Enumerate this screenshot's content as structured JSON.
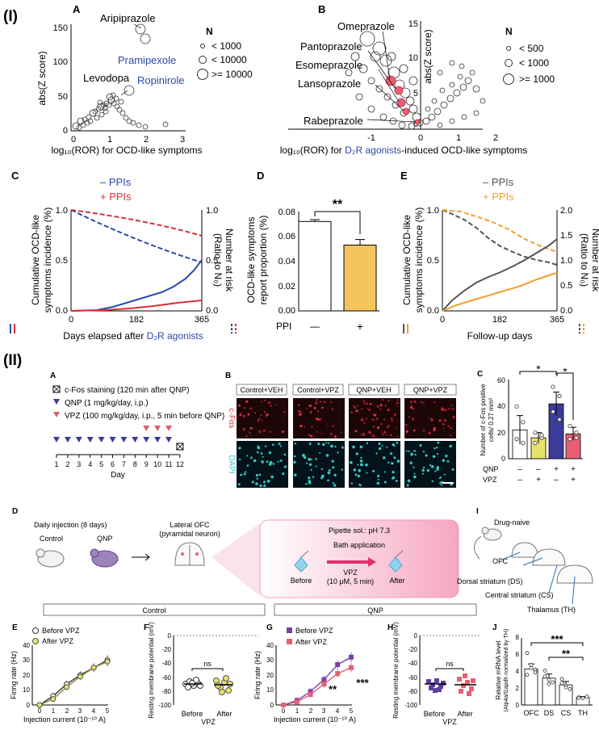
{
  "sections": {
    "I": "(I)",
    "II": "(II)"
  },
  "panels": {
    "A": "A",
    "B": "B",
    "C": "C",
    "D": "D",
    "E": "E",
    "IIA": "A",
    "IIB": "B",
    "IIC": "C",
    "IID": "D",
    "IIE": "E",
    "IIF": "F",
    "IIG": "G",
    "IIH": "H",
    "III": "I",
    "IIJ": "J"
  },
  "colors": {
    "blue": "#2b4aa8",
    "red": "#d9303a",
    "orange": "#f0a030",
    "gray": "#555555",
    "purple": "#6a3d9a",
    "pink": "#e56075",
    "teal": "#39c6c6",
    "yellow": "#f3c55c"
  },
  "panelA": {
    "ylabel": "abs(Z score)",
    "xlabel": "log₁₀(ROR) for OCD-like symptoms",
    "yticks": [
      "0",
      "50",
      "100",
      "150"
    ],
    "xticks": [
      "0",
      "1",
      "2",
      "3"
    ],
    "labels": {
      "aripiprazole": "Aripiprazole",
      "pramipexole": "Pramipexole",
      "levodopa": "Levodopa",
      "ropinirole": "Ropinirole"
    },
    "legend": {
      "title": "N",
      "items": [
        "< 1000",
        "< 10000",
        ">= 10000"
      ]
    }
  },
  "panelB": {
    "ylabel": "abs(Z score)",
    "xlabel_pre": "log₁₀(ROR) for ",
    "xlabel_blue": "D₂R agonists",
    "xlabel_post": "-induced OCD-like symptoms",
    "yticks": [
      "0",
      "5",
      "10",
      "15"
    ],
    "xticks": [
      "-1",
      "0",
      "1",
      "2"
    ],
    "labels": {
      "omeprazole": "Omeprazole",
      "pantoprazole": "Pantoprazole",
      "esomeprazole": "Esomeprazole",
      "lansoprazole": "Lansoprazole",
      "rabeprazole": "Rabeprazole"
    },
    "legend": {
      "title": "N",
      "items": [
        "< 500",
        "< 1000",
        ">= 1000"
      ]
    }
  },
  "panelC": {
    "legend_minus": "– PPIs",
    "legend_plus": "+ PPIs",
    "ylabel1": "Cumulative OCD-like",
    "ylabel2": "symptoms incidence (%)",
    "rylabel1": "Number at risk",
    "rylabel2": "(Ratio to N₀)",
    "yticks": [
      "0.0",
      "0.5",
      "1.0"
    ],
    "ryticks": [
      "0.0",
      "0.5",
      "1.0"
    ],
    "xticks": [
      "0",
      "182",
      "365"
    ],
    "xlabel_pre": "Days elapsed after ",
    "xlabel_blue": "D₂R agonists"
  },
  "panelD": {
    "ylabel1": "OCD-like symptoms",
    "ylabel2": "report proportion (%)",
    "yticks": [
      "0.00",
      "0.02",
      "0.04",
      "0.06",
      "0.08"
    ],
    "sig": "**",
    "ppi": "PPI",
    "minus": "—",
    "plus": "+"
  },
  "panelE": {
    "legend_minus": "– PPIs",
    "legend_plus": "+ PPIs",
    "ylabel1": "Cumulative OCD-like",
    "ylabel2": "symptoms incidence (%)",
    "rylabel1": "Number at risk",
    "rylabel2": "(Ratio to N₀)",
    "yticks": [
      "0.0",
      "0.5",
      "1.0"
    ],
    "ryticks": [
      "0.0",
      "0.5",
      "1.0",
      "1.5",
      "2.0"
    ],
    "xticks": [
      "0",
      "182",
      "365"
    ],
    "xlabel": "Follow-up days"
  },
  "panelIIA": {
    "legend": [
      "c-Fos staining (120 min after QNP)",
      "QNP (1 mg/kg/day, i.p.)",
      "VPZ (100 mg/kg/day, i.p., 5 min before QNP)"
    ],
    "days": [
      "1",
      "2",
      "3",
      "4",
      "5",
      "6",
      "7",
      "8",
      "9",
      "10",
      "11",
      "12"
    ],
    "xlabel": "Day"
  },
  "panelIIB": {
    "conditions": [
      "Control+VEH",
      "Control+VPZ",
      "QNP+VEH",
      "QNP+VPZ"
    ],
    "row1": "c-Fos",
    "row2": "DAPI"
  },
  "panelIIC": {
    "ylabel1": "Number of c-Fos positive",
    "ylabel2": "cells/ 0.27 mm²",
    "yticks": [
      "0",
      "20",
      "40",
      "60"
    ],
    "sig1": "*",
    "sig2": "*",
    "rows": [
      {
        "label": "QNP",
        "vals": [
          "–",
          "–",
          "+",
          "+"
        ]
      },
      {
        "label": "VPZ",
        "vals": [
          "–",
          "+",
          "–",
          "+"
        ]
      }
    ]
  },
  "panelIID": {
    "daily": "Daily injection (8 days)",
    "control": "Control",
    "qnp": "QNP",
    "ofc1": "Lateral OFC",
    "ofc2": "(pyramidal neuron)",
    "pipette": "Pipette sol.: pH 7.3",
    "bath": "Bath application",
    "before": "Before",
    "after": "After",
    "vpz1": "VPZ",
    "vpz2": "(10 μM, 5 min)"
  },
  "panelIII": {
    "naive": "Drug-naive",
    "ofc": "OFC",
    "ds": "Dorsal striatum (DS)",
    "cs": "Central striatum (CS)",
    "th": "Thalamus (TH)"
  },
  "groups": {
    "control": "Control",
    "qnp": "QNP"
  },
  "panelIIE": {
    "legend": [
      "Before VPZ",
      "After VPZ"
    ],
    "ylabel": "Firing rate (Hz)",
    "xlabel": "Injection current (10⁻¹⁰ A)",
    "yticks": [
      "0",
      "10",
      "20",
      "30",
      "40"
    ],
    "xticks": [
      "0",
      "1",
      "2",
      "3",
      "4",
      "5"
    ]
  },
  "panelIIF": {
    "ylabel": "Resting membrane potential (mV)",
    "yticks": [
      "0",
      "-20",
      "-40",
      "-60",
      "-80",
      "-100"
    ],
    "ns": "ns",
    "cats": [
      "Before",
      "After"
    ],
    "vpz": "VPZ"
  },
  "panelIIG": {
    "legend": [
      "Before VPZ",
      "After VPZ"
    ],
    "ylabel": "Firing rate (Hz)",
    "xlabel": "Injection current (10⁻¹⁰ A)",
    "yticks": [
      "0",
      "10",
      "20",
      "30",
      "40"
    ],
    "xticks": [
      "0",
      "1",
      "2",
      "3",
      "4",
      "5"
    ],
    "sig4": "**",
    "sig5": "***"
  },
  "panelIIH": {
    "ylabel": "Resting membrane potential (mV)",
    "yticks": [
      "0",
      "-20",
      "-40",
      "-60",
      "-80",
      "-100"
    ],
    "ns": "ns",
    "cats": [
      "Before",
      "After"
    ],
    "vpz": "VPZ"
  },
  "panelIIJ": {
    "ylabel1": "Relative mRNA level",
    "ylabel2": "(Atp4a/Gapdh normalized by TH)",
    "yticks": [
      "0",
      "2",
      "4",
      "6",
      "8"
    ],
    "cats": [
      "OFC",
      "DS",
      "CS",
      "TH"
    ],
    "sig1": "***",
    "sig2": "**"
  },
  "chart_data": [
    {
      "id": "I-D",
      "type": "bar",
      "title": "OCD-like symptoms report proportion",
      "categories": [
        "—",
        "+"
      ],
      "values": [
        0.072,
        0.053
      ],
      "errors": [
        0.0015,
        0.0045
      ],
      "ylim": [
        0,
        0.08
      ],
      "xlabel": "PPI",
      "ylabel": "OCD-like symptoms report proportion (%)"
    },
    {
      "id": "II-C",
      "type": "bar",
      "categories": [
        "Control+VEH",
        "Control+VPZ",
        "QNP+VEH",
        "QNP+VPZ"
      ],
      "values": [
        22,
        16,
        42,
        19
      ],
      "errors": [
        11,
        4,
        9,
        5
      ],
      "ylim": [
        0,
        60
      ],
      "ylabel": "Number of c-Fos positive cells/ 0.27 mm²"
    },
    {
      "id": "II-E",
      "type": "line",
      "x": [
        0,
        1,
        2,
        3,
        4,
        5
      ],
      "series": [
        {
          "name": "Before VPZ",
          "values": [
            0,
            6,
            14,
            20,
            25,
            30
          ]
        },
        {
          "name": "After VPZ",
          "values": [
            0,
            4,
            12,
            19,
            25,
            29
          ]
        }
      ],
      "ylim": [
        0,
        40
      ],
      "xlabel": "Injection current (10⁻¹⁰ A)",
      "ylabel": "Firing rate (Hz)"
    },
    {
      "id": "II-G",
      "type": "line",
      "x": [
        0,
        1,
        2,
        3,
        4,
        5
      ],
      "series": [
        {
          "name": "Before VPZ",
          "values": [
            0,
            3,
            9,
            17,
            27,
            32
          ]
        },
        {
          "name": "After VPZ",
          "values": [
            0,
            2,
            7,
            14,
            21,
            25
          ]
        }
      ],
      "ylim": [
        0,
        40
      ],
      "xlabel": "Injection current (10⁻¹⁰ A)",
      "ylabel": "Firing rate (Hz)"
    },
    {
      "id": "II-J",
      "type": "bar",
      "categories": [
        "OFC",
        "DS",
        "CS",
        "TH"
      ],
      "values": [
        4.3,
        3.2,
        2.4,
        0.9
      ],
      "errors": [
        0.6,
        0.5,
        0.4,
        0.1
      ],
      "ylim": [
        0,
        8
      ],
      "ylabel": "Relative mRNA level (Atp4a/Gapdh normalized by TH)"
    }
  ]
}
